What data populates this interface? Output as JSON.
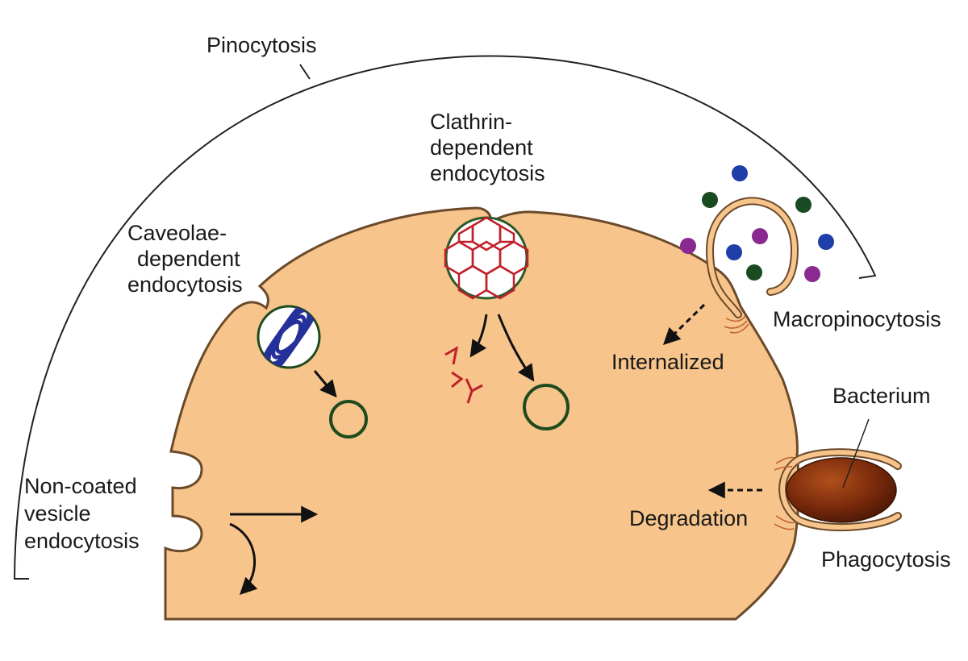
{
  "labels": {
    "pinocytosis": "Pinocytosis",
    "clathrin": [
      "Clathrin-",
      "dependent",
      "endocytosis"
    ],
    "caveolae": [
      "Caveolae-",
      "dependent",
      "endocytosis"
    ],
    "macropinocytosis": "Macropinocytosis",
    "internalized": "Internalized",
    "bacterium": "Bacterium",
    "noncoated": [
      "Non-coated",
      "vesicle",
      "endocytosis"
    ],
    "degradation": "Degradation",
    "phagocytosis": "Phagocytosis"
  },
  "colors": {
    "cell_fill": "#f7c48c",
    "cell_outline": "#6b4a2a",
    "clathrin_red": "#c0202a",
    "caveolin_blue": "#25309a",
    "vesicle_green": "#1e4a1e",
    "particle_blue": "#1f3ea8",
    "particle_green": "#1a4a22",
    "particle_purple": "#8a2a90",
    "bacterium_brown": "#7a2a0c"
  }
}
